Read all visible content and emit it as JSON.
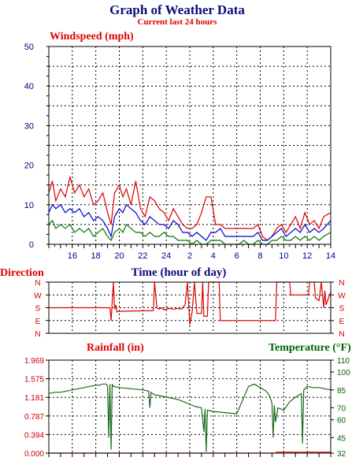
{
  "header": {
    "title": "Graph of Weather Data",
    "subtitle": "Current last 24 hours"
  },
  "colors": {
    "title": "#0b0b7a",
    "red": "#dd0000",
    "blue": "#0000cc",
    "green": "#007700",
    "dark_green": "#1c6b1c",
    "grid": "#000000"
  },
  "chart_data": [
    {
      "type": "line",
      "title": "Windspeed (mph)",
      "xlabel": "Time (hour of day)",
      "ylabel": "",
      "ylim": [
        0,
        50
      ],
      "xlim": [
        14,
        38
      ],
      "y_ticks": [
        0,
        10,
        20,
        30,
        40,
        50
      ],
      "x_ticks": [
        16,
        18,
        20,
        22,
        24,
        26,
        28,
        30,
        32,
        34,
        36,
        38
      ],
      "x_tick_labels": [
        "16",
        "18",
        "20",
        "22",
        "24",
        "2",
        "4",
        "6",
        "8",
        "10",
        "12",
        "14"
      ],
      "grid": true,
      "series": [
        {
          "name": "",
          "color": "#dd0000",
          "x": [
            14,
            14.3,
            14.6,
            15,
            15.4,
            15.8,
            16.2,
            16.6,
            17,
            17.4,
            17.8,
            18.2,
            18.6,
            19,
            19.3,
            19.6,
            20,
            20.3,
            20.6,
            21,
            21.4,
            21.8,
            22.2,
            22.6,
            23,
            23.4,
            23.8,
            24.2,
            24.6,
            25,
            25.4,
            25.8,
            26.2,
            26.6,
            27,
            27.4,
            27.8,
            28.2,
            28.6,
            29,
            29.4,
            29.8,
            30.2,
            30.6,
            31,
            31.4,
            31.8,
            32.2,
            32.6,
            33,
            33.4,
            33.8,
            34.2,
            34.6,
            35,
            35.4,
            35.8,
            36.2,
            36.6,
            37,
            37.4,
            38
          ],
          "values": [
            13,
            16,
            11,
            14,
            12,
            17,
            13,
            15,
            12,
            14,
            10,
            11,
            13,
            8,
            5,
            13,
            15,
            12,
            14,
            10,
            16,
            9,
            7,
            12,
            11,
            9,
            8,
            6,
            9,
            7,
            5,
            4,
            4,
            5,
            8,
            12,
            12,
            5,
            5,
            4,
            4,
            4,
            4,
            4,
            4,
            4,
            5,
            2,
            1,
            2,
            4,
            5,
            3,
            5,
            7,
            4,
            8,
            5,
            6,
            4,
            7,
            8
          ]
        },
        {
          "name": "",
          "color": "#0000cc",
          "x": [
            14,
            14.3,
            14.6,
            15,
            15.4,
            15.8,
            16.2,
            16.6,
            17,
            17.4,
            17.8,
            18.2,
            18.6,
            19,
            19.3,
            19.6,
            20,
            20.3,
            20.6,
            21,
            21.4,
            21.8,
            22.2,
            22.6,
            23,
            23.4,
            23.8,
            24.2,
            24.6,
            25,
            25.4,
            25.8,
            26.2,
            26.6,
            27,
            27.4,
            27.8,
            28.2,
            28.6,
            29,
            29.4,
            29.8,
            30.2,
            30.6,
            31,
            31.4,
            31.8,
            32.2,
            32.6,
            33,
            33.4,
            33.8,
            34.2,
            34.6,
            35,
            35.4,
            35.8,
            36.2,
            36.6,
            37,
            37.4,
            38
          ],
          "values": [
            8,
            10,
            9,
            10,
            8,
            9,
            8,
            9,
            7,
            8,
            6,
            7,
            6,
            4,
            2,
            7,
            9,
            8,
            10,
            9,
            8,
            6,
            5,
            7,
            6,
            5,
            5,
            4,
            6,
            5,
            3,
            3,
            2,
            3,
            2,
            1,
            3,
            3,
            4,
            2,
            2,
            2,
            2,
            2,
            2,
            2,
            3,
            1,
            1,
            2,
            3,
            4,
            2,
            3,
            4,
            3,
            5,
            3,
            4,
            3,
            4,
            6
          ]
        },
        {
          "name": "",
          "color": "#007700",
          "x": [
            14,
            14.3,
            14.6,
            15,
            15.4,
            15.8,
            16.2,
            16.6,
            17,
            17.4,
            17.8,
            18.2,
            18.6,
            19,
            19.3,
            19.6,
            20,
            20.3,
            20.6,
            21,
            21.4,
            21.8,
            22.2,
            22.6,
            23,
            23.4,
            23.8,
            24.2,
            24.6,
            25,
            25.4,
            25.8,
            26.2,
            26.6,
            27,
            27.4,
            27.8,
            28.2,
            28.6,
            29,
            29.4,
            29.8,
            30.2,
            30.6,
            31,
            31.4,
            31.8,
            32.2,
            32.6,
            33,
            33.4,
            33.8,
            34.2,
            34.6,
            35,
            35.4,
            35.8,
            36.2,
            36.6,
            37,
            37.4,
            38
          ],
          "values": [
            5,
            6,
            4,
            5,
            4,
            5,
            3,
            4,
            3,
            4,
            2,
            3,
            4,
            2,
            1,
            3,
            4,
            3,
            5,
            4,
            3,
            3,
            2,
            3,
            2,
            2,
            3,
            2,
            2,
            1,
            1,
            1,
            0,
            1,
            0,
            0,
            1,
            1,
            1,
            0,
            0,
            0,
            0,
            1,
            0,
            0,
            1,
            0,
            0,
            1,
            1,
            2,
            1,
            1,
            2,
            1,
            2,
            1,
            2,
            1,
            2,
            3
          ]
        }
      ]
    },
    {
      "type": "line",
      "title": "Direction",
      "xlim": [
        14,
        38
      ],
      "y_categories": [
        "N",
        "W",
        "S",
        "E",
        "N"
      ],
      "y_category_angles": [
        360,
        270,
        180,
        90,
        0
      ],
      "grid": true,
      "series": [
        {
          "name": "",
          "color": "#dd0000",
          "x": [
            14,
            19.2,
            19.3,
            19.4,
            19.5,
            19.6,
            19.7,
            19.8,
            20,
            22.9,
            23,
            23.2,
            23.4,
            23.6,
            23.8,
            24.2,
            24.6,
            25,
            25.3,
            25.6,
            25.8,
            26,
            26.2,
            26.4,
            26.6,
            27,
            27.1,
            27.2,
            27.5,
            27.6,
            27.8,
            28,
            28.5,
            28.6,
            33.3,
            33.4,
            34.5,
            34.6,
            36.1,
            36.2,
            36.6,
            36.7,
            37,
            37.2,
            37.4,
            37.5,
            37.6,
            38
          ],
          "values": [
            180,
            180,
            90,
            220,
            360,
            170,
            200,
            150,
            155,
            160,
            360,
            180,
            170,
            180,
            165,
            175,
            170,
            175,
            170,
            200,
            360,
            60,
            150,
            360,
            140,
            140,
            360,
            120,
            120,
            360,
            360,
            360,
            360,
            90,
            90,
            360,
            360,
            270,
            270,
            360,
            360,
            250,
            230,
            360,
            180,
            300,
            200,
            290
          ]
        }
      ]
    },
    {
      "type": "line",
      "title": "Rainfall (in)",
      "xlim": [
        14,
        38
      ],
      "ylim": [
        0,
        1.969
      ],
      "y_ticks": [
        0.0,
        0.394,
        0.787,
        1.181,
        1.575,
        1.969
      ],
      "y_tick_labels": [
        "0.000",
        "0.394",
        "0.787",
        "1.181",
        "1.575",
        "1.969"
      ],
      "y2_title": "Temperature (°F)",
      "y2_lim": [
        32,
        110
      ],
      "y2_ticks": [
        32,
        45,
        60,
        70,
        85,
        100,
        110
      ],
      "grid": true,
      "series": [
        {
          "name": "",
          "color": "#dd0000",
          "axis": "left",
          "x": [
            14,
            33.3,
            33.4,
            38
          ],
          "values": [
            0.0,
            0.0,
            0.02,
            0.02
          ]
        },
        {
          "name": "",
          "color": "#1c6b1c",
          "axis": "right",
          "x": [
            14,
            14.5,
            15,
            15.5,
            16,
            16.5,
            17,
            17.5,
            18,
            18.3,
            18.6,
            18.9,
            19,
            19.1,
            19.2,
            19.3,
            19.4,
            19.5,
            20,
            21,
            22,
            22.5,
            22.6,
            22.7,
            22.8,
            23,
            24,
            25,
            25.5,
            26,
            26.5,
            27,
            27.2,
            27.3,
            27.4,
            27.5,
            28,
            29,
            30,
            31,
            31.5,
            32,
            32.5,
            32.8,
            33,
            33.1,
            33.2,
            33.3,
            33.5,
            34,
            34.5,
            35,
            35.5,
            35.6,
            35.7,
            35.8,
            36,
            36.5,
            37,
            37.5,
            38
          ],
          "values": [
            82,
            83,
            83,
            84,
            85,
            86,
            87,
            88,
            89,
            89,
            90,
            90,
            88,
            45,
            90,
            35,
            90,
            88,
            87,
            86,
            85,
            84,
            70,
            83,
            82,
            81,
            79,
            77,
            75,
            73,
            71,
            70,
            50,
            69,
            33,
            68,
            67,
            66,
            65,
            88,
            90,
            87,
            84,
            80,
            74,
            45,
            72,
            58,
            70,
            68,
            75,
            79,
            82,
            40,
            85,
            86,
            88,
            87,
            87,
            86,
            85
          ]
        }
      ]
    }
  ]
}
